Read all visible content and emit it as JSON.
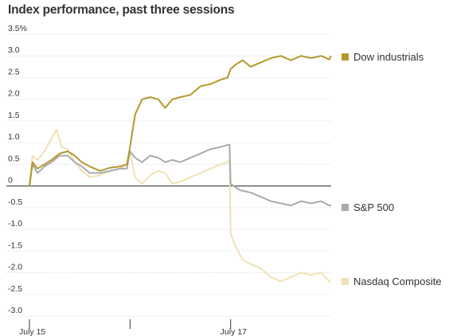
{
  "chart_data": {
    "type": "line",
    "title": "Index performance, past three sessions",
    "xlabel": "",
    "ylabel": "",
    "ylim": [
      -3.0,
      3.5
    ],
    "grid": true,
    "legend_placement": "right",
    "y_ticks": [
      {
        "value": 3.5,
        "label": "3.5%"
      },
      {
        "value": 3.0,
        "label": "3.0"
      },
      {
        "value": 2.5,
        "label": "2.5"
      },
      {
        "value": 2.0,
        "label": "2.0"
      },
      {
        "value": 1.5,
        "label": "1.5"
      },
      {
        "value": 1.0,
        "label": "1.0"
      },
      {
        "value": 0.5,
        "label": "0.5"
      },
      {
        "value": 0.0,
        "label": "0"
      },
      {
        "value": -0.5,
        "label": "-0.5"
      },
      {
        "value": -1.0,
        "label": "-1.0"
      },
      {
        "value": -1.5,
        "label": "-1.5"
      },
      {
        "value": -2.0,
        "label": "-2.0"
      },
      {
        "value": -2.5,
        "label": "-2.5"
      },
      {
        "value": -3.0,
        "label": "-3.0"
      }
    ],
    "x_ticks": [
      {
        "x": 0,
        "label": "July 15"
      },
      {
        "x": 1,
        "label": ""
      },
      {
        "x": 2,
        "label": "July 17"
      }
    ],
    "xlim": [
      0,
      3
    ],
    "series": [
      {
        "name": "Dow industrials",
        "color": "#b5982e",
        "points": [
          [
            0,
            0.0
          ],
          [
            0.03,
            0.55
          ],
          [
            0.08,
            0.4
          ],
          [
            0.15,
            0.5
          ],
          [
            0.22,
            0.6
          ],
          [
            0.3,
            0.75
          ],
          [
            0.38,
            0.8
          ],
          [
            0.45,
            0.7
          ],
          [
            0.52,
            0.55
          ],
          [
            0.6,
            0.45
          ],
          [
            0.7,
            0.35
          ],
          [
            0.8,
            0.42
          ],
          [
            0.9,
            0.45
          ],
          [
            0.97,
            0.5
          ],
          [
            1.0,
            0.9
          ],
          [
            1.05,
            1.65
          ],
          [
            1.12,
            2.0
          ],
          [
            1.2,
            2.05
          ],
          [
            1.28,
            2.0
          ],
          [
            1.35,
            1.8
          ],
          [
            1.42,
            2.0
          ],
          [
            1.5,
            2.05
          ],
          [
            1.6,
            2.1
          ],
          [
            1.7,
            2.3
          ],
          [
            1.8,
            2.35
          ],
          [
            1.9,
            2.45
          ],
          [
            1.97,
            2.5
          ],
          [
            2.0,
            2.7
          ],
          [
            2.05,
            2.8
          ],
          [
            2.12,
            2.9
          ],
          [
            2.2,
            2.75
          ],
          [
            2.3,
            2.85
          ],
          [
            2.4,
            2.95
          ],
          [
            2.5,
            3.0
          ],
          [
            2.6,
            2.9
          ],
          [
            2.7,
            3.0
          ],
          [
            2.8,
            2.95
          ],
          [
            2.9,
            3.0
          ],
          [
            2.98,
            2.92
          ],
          [
            3.0,
            3.0
          ]
        ]
      },
      {
        "name": "S&P 500",
        "color": "#aaaaaa",
        "points": [
          [
            0,
            0.0
          ],
          [
            0.03,
            0.5
          ],
          [
            0.08,
            0.3
          ],
          [
            0.15,
            0.45
          ],
          [
            0.22,
            0.55
          ],
          [
            0.3,
            0.7
          ],
          [
            0.38,
            0.7
          ],
          [
            0.45,
            0.55
          ],
          [
            0.52,
            0.45
          ],
          [
            0.6,
            0.3
          ],
          [
            0.7,
            0.3
          ],
          [
            0.8,
            0.35
          ],
          [
            0.9,
            0.4
          ],
          [
            0.97,
            0.4
          ],
          [
            1.0,
            0.8
          ],
          [
            1.05,
            0.65
          ],
          [
            1.12,
            0.55
          ],
          [
            1.2,
            0.7
          ],
          [
            1.28,
            0.65
          ],
          [
            1.35,
            0.55
          ],
          [
            1.42,
            0.6
          ],
          [
            1.5,
            0.55
          ],
          [
            1.6,
            0.65
          ],
          [
            1.7,
            0.75
          ],
          [
            1.8,
            0.85
          ],
          [
            1.9,
            0.9
          ],
          [
            1.97,
            0.95
          ],
          [
            1.99,
            0.95
          ],
          [
            2.0,
            0.05
          ],
          [
            2.03,
            0.0
          ],
          [
            2.1,
            -0.1
          ],
          [
            2.2,
            -0.15
          ],
          [
            2.3,
            -0.25
          ],
          [
            2.4,
            -0.35
          ],
          [
            2.5,
            -0.4
          ],
          [
            2.6,
            -0.45
          ],
          [
            2.7,
            -0.35
          ],
          [
            2.8,
            -0.4
          ],
          [
            2.9,
            -0.35
          ],
          [
            2.98,
            -0.45
          ],
          [
            3.0,
            -0.45
          ]
        ]
      },
      {
        "name": "Nasdaq Composite",
        "color": "#efe2b3",
        "points": [
          [
            0,
            0.0
          ],
          [
            0.03,
            0.7
          ],
          [
            0.08,
            0.6
          ],
          [
            0.15,
            0.8
          ],
          [
            0.22,
            1.1
          ],
          [
            0.27,
            1.3
          ],
          [
            0.32,
            0.9
          ],
          [
            0.38,
            0.85
          ],
          [
            0.45,
            0.55
          ],
          [
            0.52,
            0.35
          ],
          [
            0.6,
            0.2
          ],
          [
            0.7,
            0.25
          ],
          [
            0.8,
            0.35
          ],
          [
            0.9,
            0.4
          ],
          [
            0.97,
            0.5
          ],
          [
            1.0,
            0.8
          ],
          [
            1.05,
            0.2
          ],
          [
            1.12,
            0.05
          ],
          [
            1.2,
            0.25
          ],
          [
            1.28,
            0.35
          ],
          [
            1.35,
            0.3
          ],
          [
            1.42,
            0.05
          ],
          [
            1.5,
            0.1
          ],
          [
            1.6,
            0.2
          ],
          [
            1.7,
            0.3
          ],
          [
            1.8,
            0.4
          ],
          [
            1.9,
            0.5
          ],
          [
            1.97,
            0.55
          ],
          [
            1.99,
            0.6
          ],
          [
            2.0,
            -1.1
          ],
          [
            2.05,
            -1.4
          ],
          [
            2.12,
            -1.7
          ],
          [
            2.2,
            -1.8
          ],
          [
            2.3,
            -1.9
          ],
          [
            2.4,
            -2.1
          ],
          [
            2.5,
            -2.2
          ],
          [
            2.6,
            -2.1
          ],
          [
            2.7,
            -2.0
          ],
          [
            2.8,
            -2.05
          ],
          [
            2.9,
            -2.0
          ],
          [
            2.98,
            -2.2
          ],
          [
            3.0,
            -2.2
          ]
        ]
      }
    ]
  }
}
